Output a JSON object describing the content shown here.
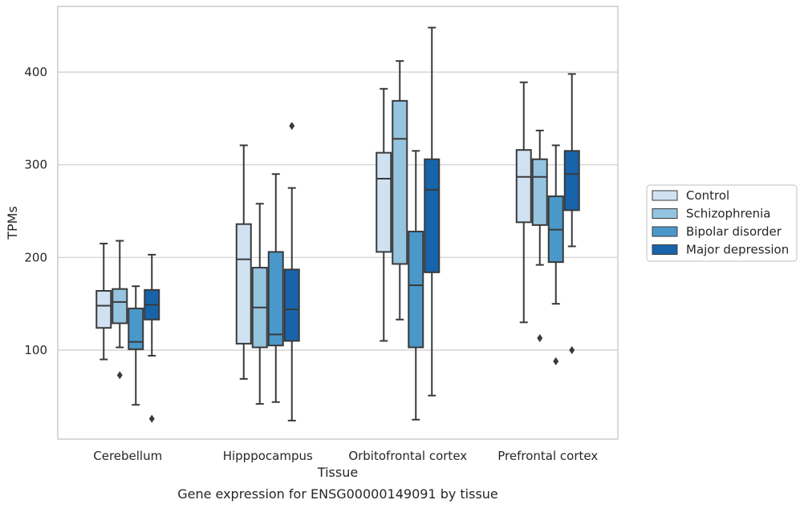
{
  "chart_data": {
    "type": "boxplot",
    "caption": "Gene expression for ENSG00000149091 by tissue",
    "xlabel": "Tissue",
    "ylabel": "TPMs",
    "ylim": [
      5,
      460
    ],
    "yticks": [
      100,
      200,
      300,
      400
    ],
    "grid": "horizontal",
    "legend_position": "right",
    "categories": [
      "Cerebellum",
      "Hipppocampus",
      "Orbitofrontal cortex",
      "Prefrontal cortex"
    ],
    "series": [
      {
        "name": "Control",
        "color": "#d0e1f2",
        "boxes": [
          {
            "whislo": 90,
            "q1": 124,
            "med": 148,
            "q3": 164,
            "whishi": 215,
            "fliers": []
          },
          {
            "whislo": 69,
            "q1": 107,
            "med": 198,
            "q3": 236,
            "whishi": 321,
            "fliers": []
          },
          {
            "whislo": 110,
            "q1": 206,
            "med": 285,
            "q3": 313,
            "whishi": 382,
            "fliers": []
          },
          {
            "whislo": 130,
            "q1": 238,
            "med": 287,
            "q3": 316,
            "whishi": 389,
            "fliers": []
          }
        ]
      },
      {
        "name": "Schizophrenia",
        "color": "#94c4df",
        "boxes": [
          {
            "whislo": 103,
            "q1": 129,
            "med": 152,
            "q3": 166,
            "whishi": 218,
            "fliers": [
              73
            ]
          },
          {
            "whislo": 42,
            "q1": 103,
            "med": 146,
            "q3": 189,
            "whishi": 258,
            "fliers": []
          },
          {
            "whislo": 133,
            "q1": 193,
            "med": 328,
            "q3": 369,
            "whishi": 412,
            "fliers": []
          },
          {
            "whislo": 192,
            "q1": 235,
            "med": 287,
            "q3": 306,
            "whishi": 337,
            "fliers": [
              113
            ]
          }
        ]
      },
      {
        "name": "Bipolar disorder",
        "color": "#4a98c9",
        "boxes": [
          {
            "whislo": 41,
            "q1": 101,
            "med": 109,
            "q3": 145,
            "whishi": 169,
            "fliers": []
          },
          {
            "whislo": 44,
            "q1": 105,
            "med": 117,
            "q3": 206,
            "whishi": 290,
            "fliers": []
          },
          {
            "whislo": 25,
            "q1": 103,
            "med": 170,
            "q3": 228,
            "whishi": 315,
            "fliers": []
          },
          {
            "whislo": 150,
            "q1": 195,
            "med": 230,
            "q3": 266,
            "whishi": 321,
            "fliers": [
              88
            ]
          }
        ]
      },
      {
        "name": "Major depression",
        "color": "#1764ab",
        "boxes": [
          {
            "whislo": 94,
            "q1": 133,
            "med": 149,
            "q3": 165,
            "whishi": 203,
            "fliers": [
              26
            ]
          },
          {
            "whislo": 24,
            "q1": 110,
            "med": 144,
            "q3": 187,
            "whishi": 275,
            "fliers": [
              342
            ]
          },
          {
            "whislo": 51,
            "q1": 184,
            "med": 273,
            "q3": 306,
            "whishi": 448,
            "fliers": []
          },
          {
            "whislo": 212,
            "q1": 251,
            "med": 290,
            "q3": 315,
            "whishi": 398,
            "fliers": [
              100
            ]
          }
        ]
      }
    ]
  }
}
